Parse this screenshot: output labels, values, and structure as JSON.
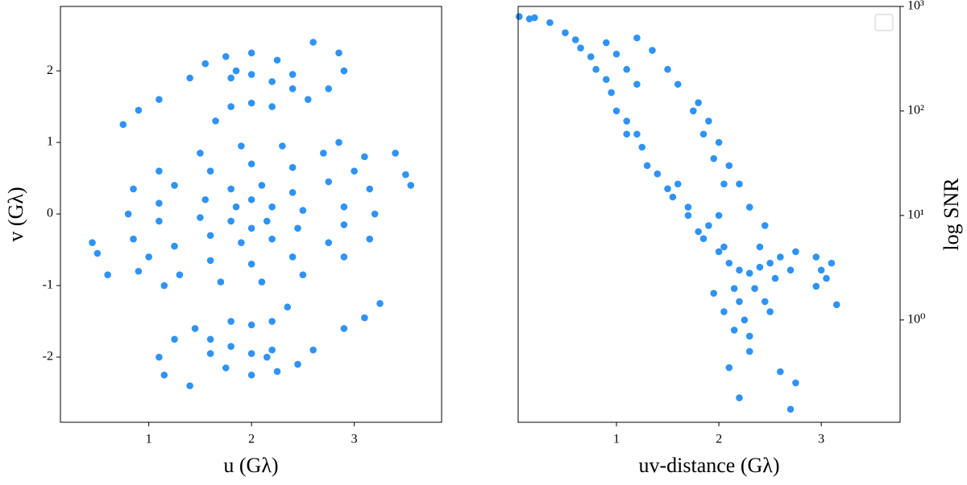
{
  "chart_data": [
    {
      "type": "scatter",
      "color": "#2f93f5",
      "xlabel": "u (Gλ)",
      "ylabel": "v (Gλ)",
      "xlim": [
        0.14,
        3.85
      ],
      "ylim": [
        -2.91,
        2.9
      ],
      "xticks": [
        1,
        2,
        3
      ],
      "yticks": [
        -2,
        -1,
        0,
        1,
        2
      ],
      "y_axis_side": "left",
      "yscale": "linear",
      "x": [
        3.2,
        3.15,
        3.0,
        2.7,
        2.3,
        1.9,
        1.5,
        1.1,
        0.85,
        2.9,
        2.75,
        2.4,
        2.0,
        1.6,
        1.25,
        1.1,
        2.5,
        2.4,
        2.1,
        1.8,
        1.55,
        2.2,
        2.0,
        1.85,
        2.85,
        3.1,
        1.4,
        1.55,
        1.75,
        2.0,
        2.25,
        2.4,
        2.4,
        2.6,
        2.85,
        2.9,
        2.75,
        2.55,
        1.8,
        2.0,
        2.2,
        1.65,
        1.8,
        2.0,
        2.2,
        1.85,
        0.75,
        0.9,
        1.1,
        3.4,
        3.5,
        3.55,
        0.8,
        0.85,
        1.0,
        1.3,
        1.7,
        2.1,
        2.5,
        2.9,
        3.15,
        1.1,
        1.25,
        1.6,
        2.0,
        2.4,
        2.75,
        2.9,
        1.5,
        1.6,
        1.9,
        2.2,
        2.45,
        1.8,
        2.0,
        2.15,
        1.15,
        0.9,
        2.6,
        2.45,
        2.25,
        2.0,
        1.75,
        1.6,
        1.6,
        1.4,
        1.15,
        1.1,
        1.25,
        1.45,
        2.2,
        2.0,
        1.8,
        2.35,
        2.2,
        2.0,
        1.8,
        2.15,
        3.25,
        3.1,
        2.9,
        0.6,
        0.5,
        0.45
      ],
      "values": [
        0,
        0.35,
        0.6,
        0.85,
        0.95,
        0.95,
        0.85,
        0.6,
        0.35,
        0.1,
        0.45,
        0.65,
        0.7,
        0.6,
        0.4,
        0.15,
        0.05,
        0.3,
        0.4,
        0.35,
        0.2,
        0.1,
        0.2,
        0.1,
        1.0,
        0.8,
        1.9,
        2.1,
        2.2,
        2.25,
        2.15,
        1.95,
        1.75,
        2.4,
        2.25,
        2.0,
        1.75,
        1.6,
        1.9,
        1.95,
        1.85,
        1.3,
        1.5,
        1.55,
        1.5,
        2.0,
        1.25,
        1.45,
        1.6,
        0.85,
        0.55,
        0.4,
        0,
        -0.35,
        -0.6,
        -0.85,
        -0.95,
        -0.95,
        -0.85,
        -0.6,
        -0.35,
        -0.1,
        -0.45,
        -0.65,
        -0.7,
        -0.6,
        -0.4,
        -0.15,
        -0.05,
        -0.3,
        -0.4,
        -0.35,
        -0.2,
        -0.1,
        -0.2,
        -0.1,
        -1.0,
        -0.8,
        -1.9,
        -2.1,
        -2.2,
        -2.25,
        -2.15,
        -1.95,
        -1.75,
        -2.4,
        -2.25,
        -2.0,
        -1.75,
        -1.6,
        -1.9,
        -1.95,
        -1.85,
        -1.3,
        -1.5,
        -1.55,
        -1.5,
        -2.0,
        -1.25,
        -1.45,
        -1.6,
        -0.85,
        -0.55,
        -0.4
      ]
    },
    {
      "type": "scatter",
      "color": "#2f93f5",
      "xlabel": "uv-distance (Gλ)",
      "ylabel": "log SNR",
      "xlim": [
        0.04,
        3.77
      ],
      "ylim": [
        0.105,
        1000
      ],
      "xticks": [
        1,
        2,
        3
      ],
      "yticks": [
        {
          "value": 1,
          "label": "10⁰"
        },
        {
          "value": 10,
          "label": "10¹"
        },
        {
          "value": 100,
          "label": "10²"
        },
        {
          "value": 1000,
          "label": "10³"
        }
      ],
      "y_axis_side": "right",
      "yscale": "log",
      "x": [
        0.05,
        0.2,
        0.35,
        0.5,
        0.65,
        0.8,
        0.95,
        1.1,
        1.25,
        1.4,
        1.55,
        1.7,
        1.85,
        2.0,
        2.1,
        2.2,
        2.3,
        2.4,
        2.5,
        0.9,
        1.0,
        1.1,
        1.2,
        1.2,
        1.35,
        1.5,
        1.6,
        1.8,
        1.9,
        2.0,
        2.1,
        2.2,
        2.3,
        2.45,
        1.75,
        1.85,
        1.95,
        2.05,
        1.0,
        1.1,
        1.3,
        1.5,
        1.7,
        1.9,
        2.05,
        2.15,
        2.2,
        2.25,
        2.3,
        2.1,
        2.2,
        2.6,
        2.7,
        2.75,
        2.35,
        2.45,
        2.55,
        2.6,
        2.7,
        2.75,
        2.95,
        3.0,
        3.05,
        3.1,
        3.15,
        2.95,
        1.95,
        2.05,
        2.3,
        0.15,
        0.6,
        0.75,
        0.9,
        1.2,
        1.6,
        1.8,
        2.4,
        2.0,
        2.15,
        2.5
      ],
      "values": [
        800,
        780,
        700,
        560,
        400,
        250,
        150,
        80,
        45,
        25,
        15,
        10,
        6,
        4.5,
        3.5,
        3,
        2.8,
        3.2,
        3.5,
        450,
        350,
        250,
        180,
        500,
        380,
        250,
        180,
        120,
        80,
        50,
        30,
        20,
        12,
        8,
        100,
        60,
        35,
        20,
        100,
        60,
        30,
        18,
        12,
        8,
        5,
        2,
        1.5,
        1,
        0.7,
        0.35,
        0.18,
        0.32,
        0.14,
        0.25,
        2,
        1.5,
        2.5,
        4,
        3,
        4.5,
        4,
        3,
        2.5,
        3.5,
        1.4,
        2.1,
        1.8,
        1.2,
        0.5,
        760,
        480,
        330,
        200,
        60,
        20,
        7,
        5,
        10,
        0.8,
        1.2
      ]
    }
  ]
}
